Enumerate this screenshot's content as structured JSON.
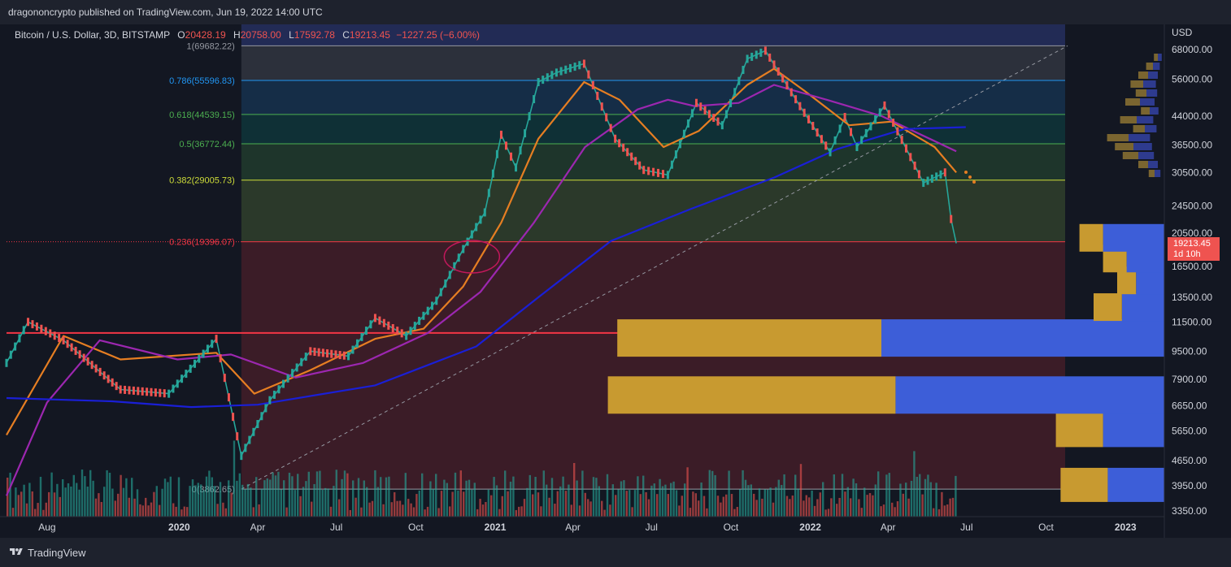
{
  "header": {
    "publisher": "dragononcrypto published on TradingView.com, Jun 19, 2022 14:00 UTC"
  },
  "legend": {
    "symbol": "Bitcoin / U.S. Dollar, 3D, BITSTAMP",
    "o_key": "O",
    "o_val": "20428.19",
    "h_key": "H",
    "h_val": "20758.00",
    "l_key": "L",
    "l_val": "17592.78",
    "c_key": "C",
    "c_val": "19213.45",
    "change": "−1227.25 (−6.00%)"
  },
  "axis": {
    "currency": "USD",
    "last_price": "19213.45",
    "countdown": "1d 10h"
  },
  "footer": {
    "brand": "TradingView"
  },
  "chart_data": {
    "type": "line",
    "title": "Bitcoin / U.S. Dollar, 3D, BITSTAMP",
    "y_scale": "log",
    "y_ticks": [
      68000,
      56000,
      44000,
      36500,
      30500,
      24500,
      20500,
      16500,
      13500,
      11500,
      9500,
      7900,
      6650,
      5650,
      4650,
      3950,
      3350
    ],
    "y_tick_labels": [
      "68000.00",
      "56000.00",
      "44000.00",
      "36500.00",
      "30500.00",
      "24500.00",
      "20500.00",
      "16500.00",
      "13500.00",
      "11500.00",
      "9500.00",
      "7900.00",
      "6650.00",
      "5650.00",
      "4650.00",
      "3950.00",
      "3350.00"
    ],
    "x_tick_labels": [
      "Aug",
      "2020",
      "Apr",
      "Jul",
      "Oct",
      "2021",
      "Apr",
      "Jul",
      "Oct",
      "2022",
      "Apr",
      "Jul",
      "Oct",
      "2023"
    ],
    "x_range": [
      "2019-06-15",
      "2023-02-15"
    ],
    "fib_levels": [
      {
        "label": "1(69682.22)",
        "value": 69682.22,
        "color": "#9598a1"
      },
      {
        "label": "0.786(55596.83)",
        "value": 55596.83,
        "color": "#2196f3"
      },
      {
        "label": "0.618(44539.15)",
        "value": 44539.15,
        "color": "#4caf50"
      },
      {
        "label": "0.5(36772.44)",
        "value": 36772.44,
        "color": "#4caf50"
      },
      {
        "label": "0.382(29005.73)",
        "value": 29005.73,
        "color": "#cddc39"
      },
      {
        "label": "0.236(19396.07)",
        "value": 19396.07,
        "color": "#f23645"
      },
      {
        "label": "0(3862.65)",
        "value": 3862.65,
        "color": "#9598a1"
      }
    ],
    "support_line": {
      "value": 10700,
      "color": "#f23645"
    },
    "trend_line": {
      "from": [
        "2020-03-13",
        3862.65
      ],
      "to": [
        "2022-10-26",
        69682.22
      ]
    },
    "series": [
      {
        "name": "",
        "role": "price",
        "color": "#26a69a",
        "points": [
          [
            "2019-06-15",
            8800
          ],
          [
            "2019-07-10",
            11500
          ],
          [
            "2019-08-20",
            10200
          ],
          [
            "2019-10-25",
            7400
          ],
          [
            "2019-12-20",
            7200
          ],
          [
            "2020-02-13",
            10300
          ],
          [
            "2020-03-13",
            4800
          ],
          [
            "2020-04-15",
            6900
          ],
          [
            "2020-06-01",
            9500
          ],
          [
            "2020-07-15",
            9200
          ],
          [
            "2020-08-15",
            11800
          ],
          [
            "2020-09-20",
            10500
          ],
          [
            "2020-10-25",
            13200
          ],
          [
            "2020-11-25",
            18500
          ],
          [
            "2020-12-20",
            23500
          ],
          [
            "2021-01-08",
            39000
          ],
          [
            "2021-01-25",
            31500
          ],
          [
            "2021-02-20",
            55000
          ],
          [
            "2021-03-13",
            58500
          ],
          [
            "2021-04-14",
            62000
          ],
          [
            "2021-05-20",
            38000
          ],
          [
            "2021-06-22",
            31000
          ],
          [
            "2021-07-20",
            30000
          ],
          [
            "2021-08-22",
            48000
          ],
          [
            "2021-09-21",
            41500
          ],
          [
            "2021-10-20",
            64000
          ],
          [
            "2021-11-10",
            67500
          ],
          [
            "2021-12-20",
            47000
          ],
          [
            "2022-01-24",
            34800
          ],
          [
            "2022-02-10",
            43800
          ],
          [
            "2022-02-24",
            36000
          ],
          [
            "2022-03-28",
            47200
          ],
          [
            "2022-05-12",
            28500
          ],
          [
            "2022-06-06",
            30500
          ],
          [
            "2022-06-13",
            22500
          ],
          [
            "2022-06-19",
            19213
          ]
        ]
      },
      {
        "name": "",
        "role": "ma-short",
        "color": "#e67e22",
        "points": [
          [
            "2019-06-15",
            5500
          ],
          [
            "2019-08-20",
            10500
          ],
          [
            "2019-10-25",
            9000
          ],
          [
            "2020-02-13",
            9400
          ],
          [
            "2020-03-28",
            7200
          ],
          [
            "2020-06-01",
            8400
          ],
          [
            "2020-08-15",
            10300
          ],
          [
            "2020-10-10",
            11000
          ],
          [
            "2020-11-25",
            14500
          ],
          [
            "2021-01-08",
            22000
          ],
          [
            "2021-02-20",
            38000
          ],
          [
            "2021-04-14",
            55000
          ],
          [
            "2021-05-25",
            49000
          ],
          [
            "2021-07-15",
            36000
          ],
          [
            "2021-08-25",
            40000
          ],
          [
            "2021-10-20",
            54000
          ],
          [
            "2021-11-20",
            60000
          ],
          [
            "2021-12-25",
            52000
          ],
          [
            "2022-02-15",
            41500
          ],
          [
            "2022-04-05",
            42500
          ],
          [
            "2022-05-25",
            36000
          ],
          [
            "2022-06-19",
            30500
          ]
        ]
      },
      {
        "name": "",
        "role": "ma-mid",
        "color": "#9c27b0",
        "points": [
          [
            "2019-06-15",
            3700
          ],
          [
            "2019-08-01",
            6800
          ],
          [
            "2019-10-01",
            10200
          ],
          [
            "2019-12-30",
            9000
          ],
          [
            "2020-03-01",
            9300
          ],
          [
            "2020-05-15",
            8000
          ],
          [
            "2020-08-01",
            8800
          ],
          [
            "2020-10-15",
            10700
          ],
          [
            "2020-12-15",
            14000
          ],
          [
            "2021-02-15",
            22000
          ],
          [
            "2021-04-15",
            36000
          ],
          [
            "2021-06-15",
            46000
          ],
          [
            "2021-07-20",
            49000
          ],
          [
            "2021-08-20",
            47000
          ],
          [
            "2021-10-10",
            48000
          ],
          [
            "2021-11-20",
            54000
          ],
          [
            "2022-01-20",
            49000
          ],
          [
            "2022-03-25",
            44000
          ],
          [
            "2022-06-19",
            35000
          ]
        ]
      },
      {
        "name": "",
        "role": "ma-long",
        "color": "#1a1fd6",
        "points": [
          [
            "2019-06-15",
            7000
          ],
          [
            "2019-10-15",
            6850
          ],
          [
            "2020-01-15",
            6600
          ],
          [
            "2020-04-01",
            6700
          ],
          [
            "2020-08-15",
            7600
          ],
          [
            "2020-12-10",
            9800
          ],
          [
            "2021-02-20",
            13500
          ],
          [
            "2021-05-15",
            19500
          ],
          [
            "2021-08-15",
            24000
          ],
          [
            "2021-11-20",
            29500
          ],
          [
            "2022-02-01",
            35500
          ],
          [
            "2022-04-20",
            40500
          ],
          [
            "2022-06-30",
            41000
          ]
        ]
      }
    ],
    "volume_profile": [
      {
        "price": 3950,
        "buy": 1,
        "sell": 1.2
      },
      {
        "price": 5650,
        "buy": 1,
        "sell": 1.3
      },
      {
        "price": 7100,
        "buy": 6.1,
        "sell": 5.7
      },
      {
        "price": 10300,
        "buy": 5.6,
        "sell": 6.0
      },
      {
        "price": 12600,
        "buy": 0.6,
        "sell": 0.9
      },
      {
        "price": 15000,
        "buy": 0.4,
        "sell": 0.6
      },
      {
        "price": 17300,
        "buy": 0.5,
        "sell": 0.8
      },
      {
        "price": 19800,
        "buy": 0.5,
        "sell": 1.3
      }
    ]
  }
}
